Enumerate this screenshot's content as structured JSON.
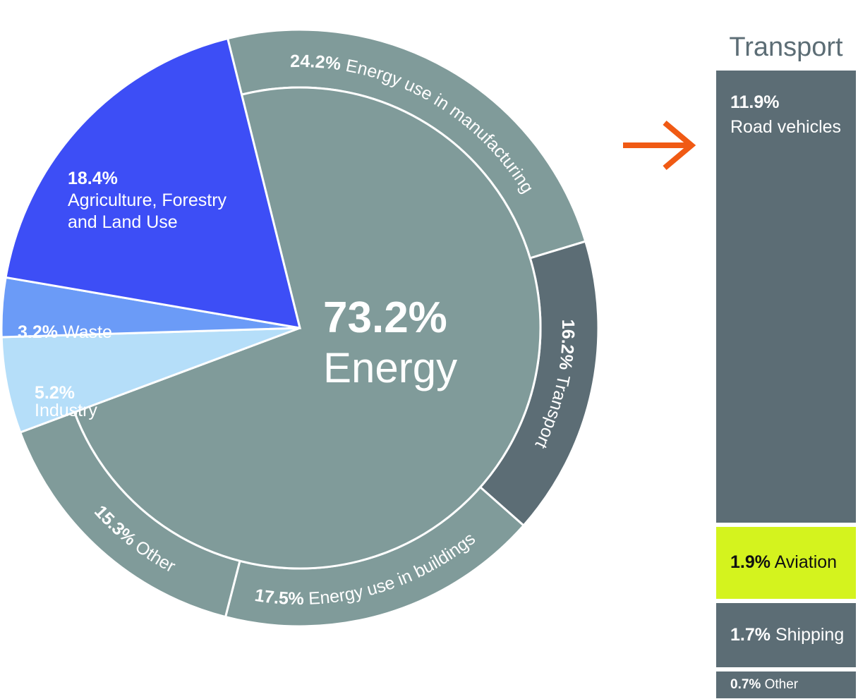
{
  "chart_data": [
    {
      "type": "pie",
      "title": "",
      "center_label": {
        "value": "73.2%",
        "name": "Energy"
      },
      "slices": [
        {
          "name": "Energy",
          "value": 73.2,
          "color": "#809b9a"
        },
        {
          "name": "Industry",
          "value": 5.2,
          "color": "#b5def9"
        },
        {
          "name": "Waste",
          "value": 3.2,
          "color": "#6b9bf7"
        },
        {
          "name": "Agriculture, Forestry and Land Use",
          "value": 18.4,
          "color": "#3d4ef6"
        }
      ],
      "slice_labels": {
        "agriculture": {
          "pct": "18.4%",
          "line1": "Agriculture, Forestry",
          "line2": "and Land Use"
        },
        "waste": {
          "pct": "3.2%",
          "name": "Waste"
        },
        "industry": {
          "pct": "5.2%",
          "name": "Industry"
        }
      },
      "energy_breakdown": [
        {
          "pct": "24.2%",
          "name": "Energy use in manufacturing",
          "value": 24.2,
          "color": "#809b9a"
        },
        {
          "pct": "16.2%",
          "name": "Transport",
          "value": 16.2,
          "color": "#5c6d75"
        },
        {
          "pct": "17.5%",
          "name": "Energy use in buildings",
          "value": 17.5,
          "color": "#809b9a"
        },
        {
          "pct": "15.3%",
          "name": "Other",
          "value": 15.3,
          "color": "#809b9a"
        }
      ]
    },
    {
      "type": "bar",
      "stacked": true,
      "title": "Transport",
      "segments": [
        {
          "pct": "11.9%",
          "name": "Road vehicles",
          "value": 11.9,
          "color": "#5c6d75",
          "text_color": "#ffffff"
        },
        {
          "pct": "1.9%",
          "name": "Aviation",
          "value": 1.9,
          "color": "#d4f31e",
          "text_color": "#111111"
        },
        {
          "pct": "1.7%",
          "name": "Shipping",
          "value": 1.7,
          "color": "#5c6d75",
          "text_color": "#ffffff"
        },
        {
          "pct": "0.7%",
          "name": "Other",
          "value": 0.7,
          "color": "#5c6d75",
          "text_color": "#ffffff"
        }
      ]
    }
  ],
  "arrow": {
    "icon": "arrow-right-icon",
    "color": "#f05a14"
  }
}
